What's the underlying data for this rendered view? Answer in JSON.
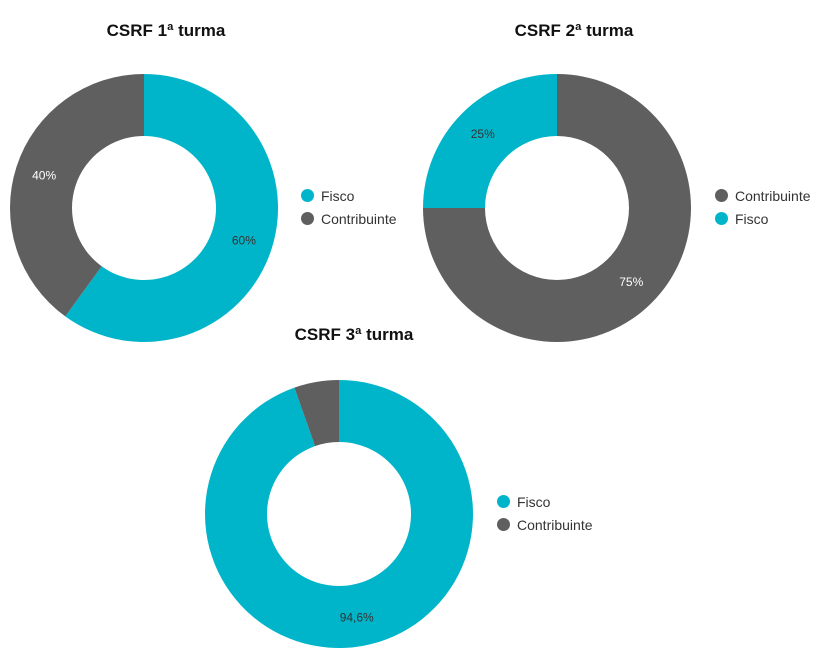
{
  "chart_data": [
    {
      "type": "pie",
      "title": "CSRF 1ª turma",
      "categories": [
        "Fisco",
        "Contribuinte"
      ],
      "values": [
        60,
        40
      ],
      "labels": [
        "60%",
        "40%"
      ],
      "colors": [
        "#00B5C9",
        "#5F5F5F"
      ],
      "legend_placement": "right"
    },
    {
      "type": "pie",
      "title": "CSRF 2ª turma",
      "categories": [
        "Contribuinte",
        "Fisco"
      ],
      "values": [
        75,
        25
      ],
      "labels": [
        "75%",
        "25%"
      ],
      "colors": [
        "#5F5F5F",
        "#00B5C9"
      ],
      "legend_placement": "right"
    },
    {
      "type": "pie",
      "title": "CSRF 3ª turma",
      "categories": [
        "Fisco",
        "Contribuinte"
      ],
      "values": [
        94.6,
        5.4
      ],
      "labels": [
        "94,6%",
        ""
      ],
      "colors": [
        "#00B5C9",
        "#5F5F5F"
      ],
      "legend_placement": "right"
    }
  ]
}
